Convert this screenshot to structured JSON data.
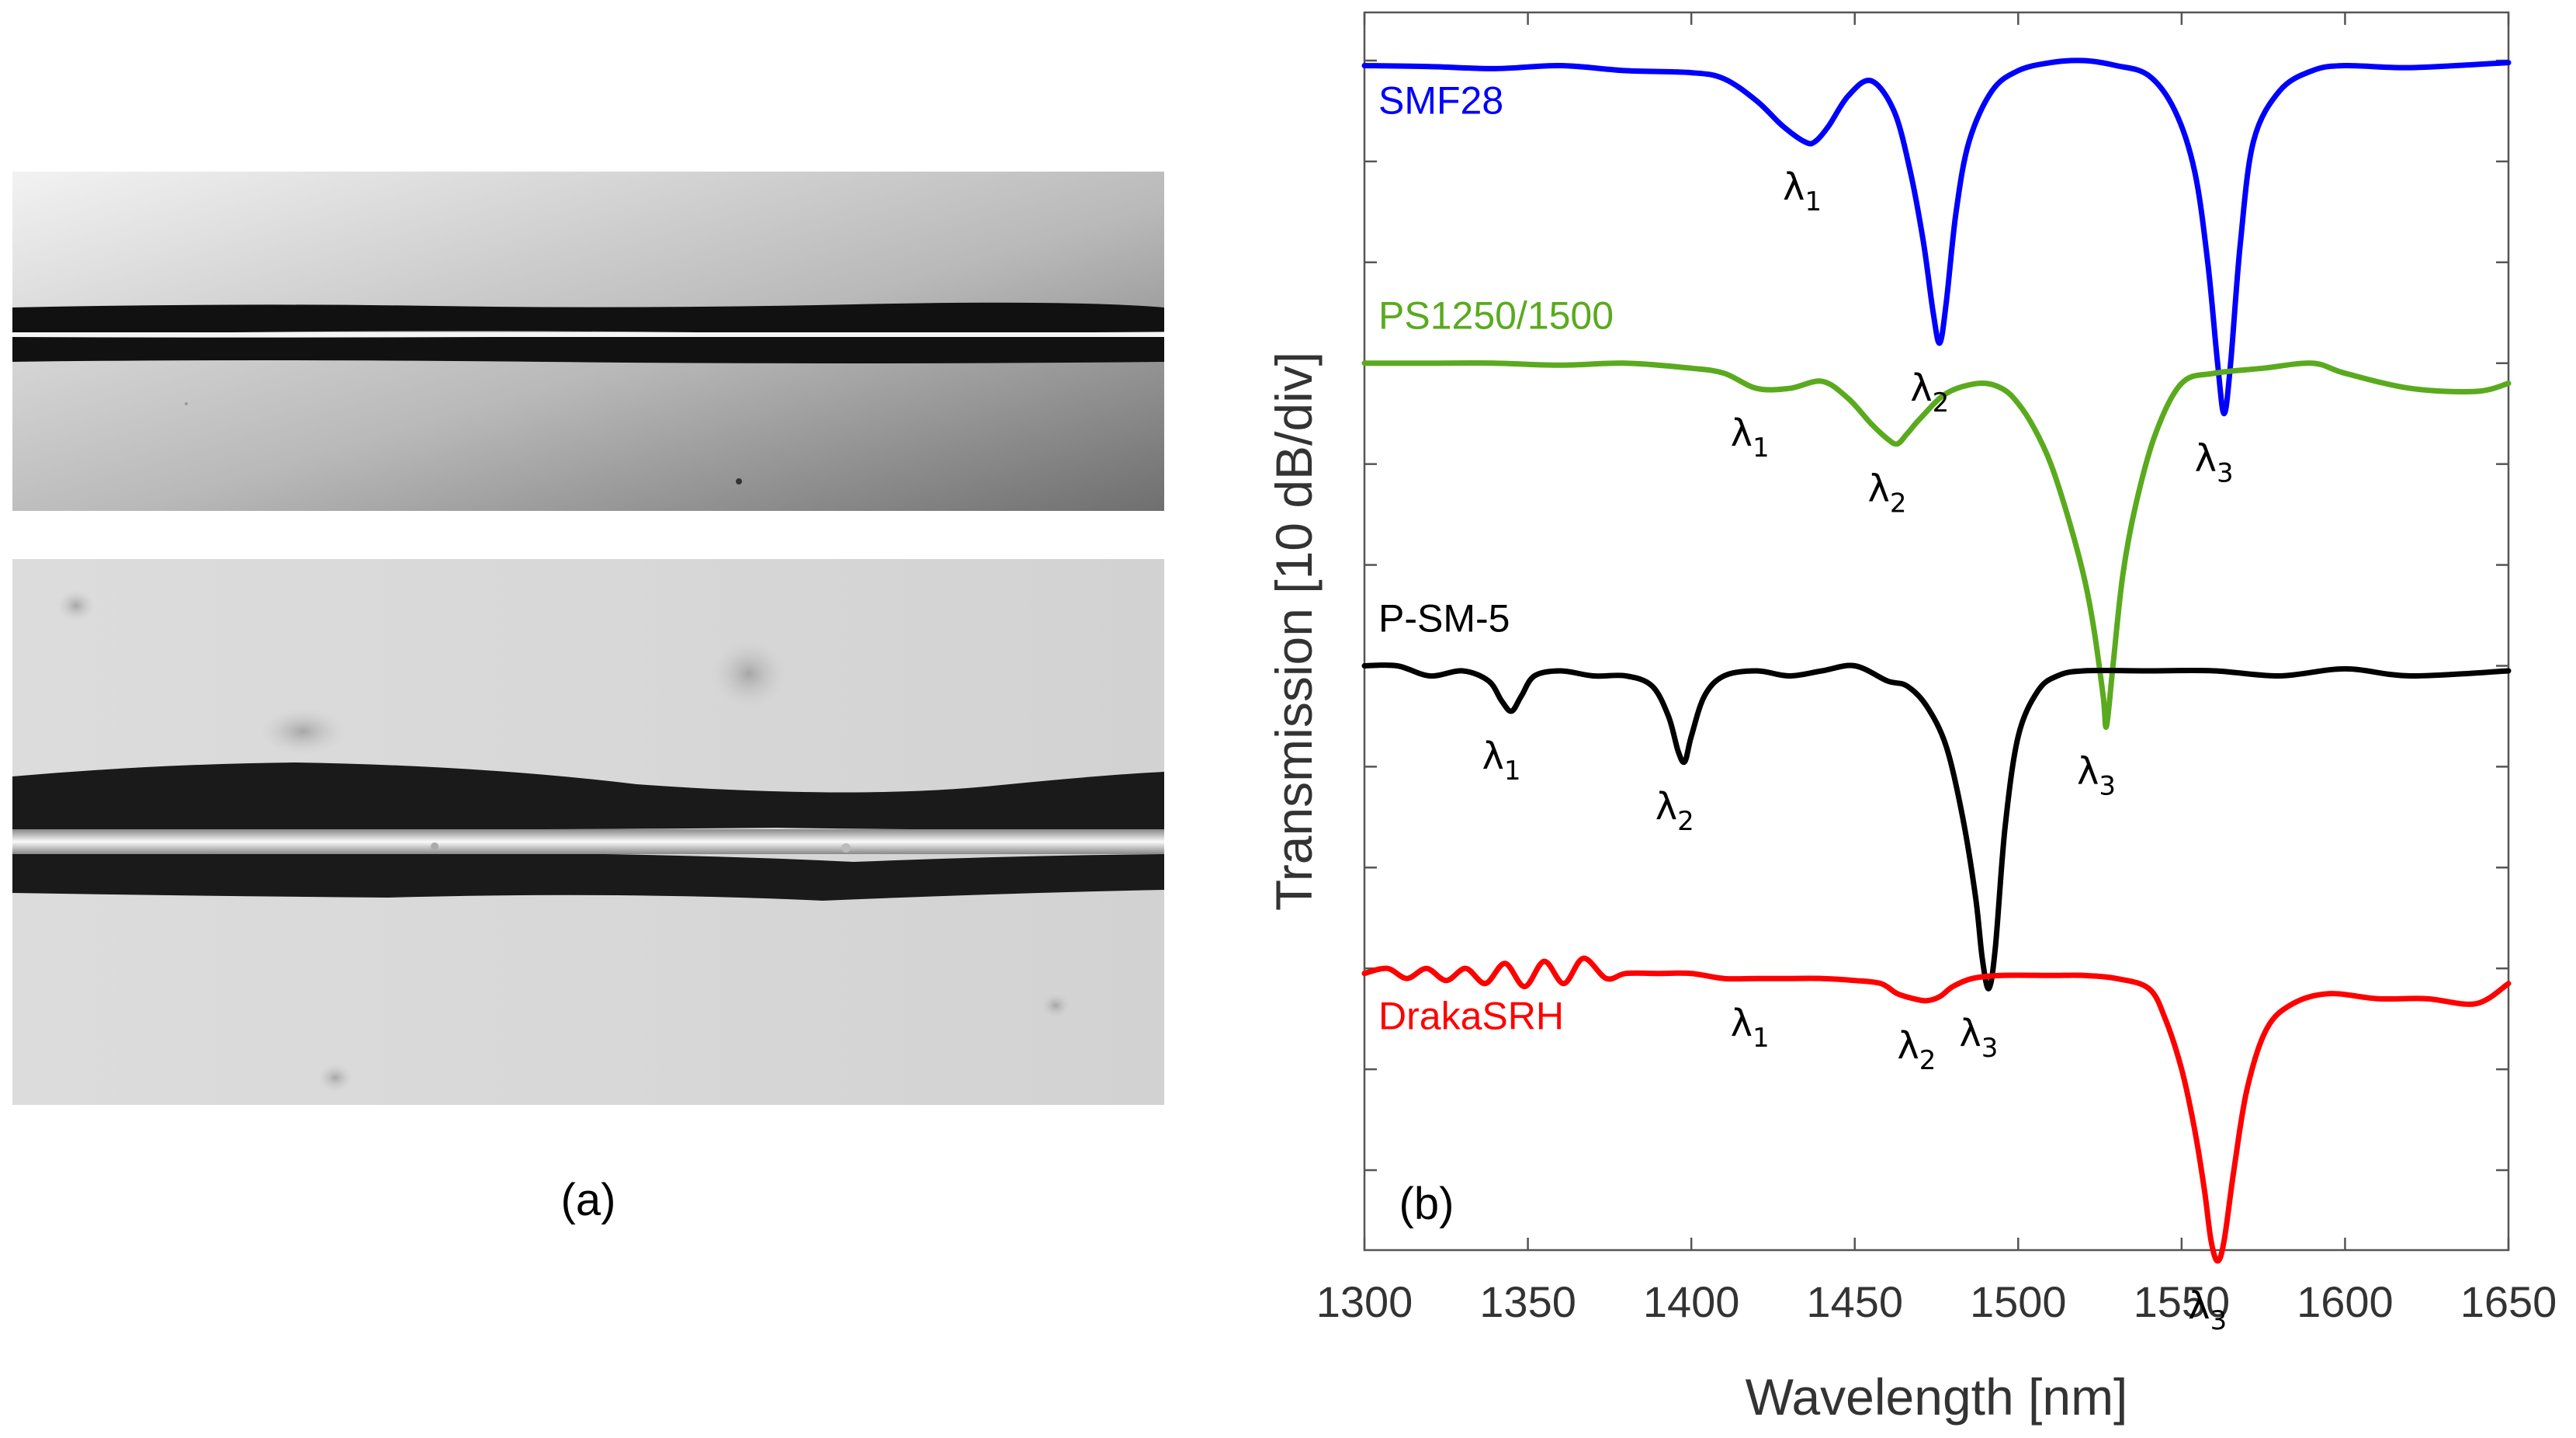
{
  "panel_a": {
    "label": "(a)",
    "images": [
      {
        "name": "micrograph-top",
        "description_name": "tapered fiber micrograph (low magnification)"
      },
      {
        "name": "micrograph-bottom",
        "description_name": "tapered fiber micrograph (high magnification)"
      }
    ]
  },
  "panel_b": {
    "label": "(b)"
  },
  "chart_data": {
    "type": "line",
    "title": "",
    "xlabel": "Wavelength [nm]",
    "ylabel": "Transmission [10 dB/div]",
    "xlim": [
      1300,
      1650
    ],
    "xticks": [
      1300,
      1350,
      1400,
      1450,
      1500,
      1550,
      1600,
      1650
    ],
    "ylim": [
      -115,
      0
    ],
    "ytick_step_db": 10,
    "grid": false,
    "legend": "none (series labels placed inline)",
    "series": [
      {
        "name": "SMF28",
        "color": "#0000ff",
        "x": [
          1300,
          1320,
          1340,
          1360,
          1380,
          1400,
          1410,
          1420,
          1428,
          1435,
          1438,
          1442,
          1448,
          1455,
          1462,
          1467,
          1471,
          1474,
          1476,
          1478,
          1481,
          1485,
          1492,
          1500,
          1510,
          1520,
          1530,
          1540,
          1548,
          1554,
          1558,
          1561,
          1563,
          1565,
          1568,
          1572,
          1580,
          1590,
          1600,
          1620,
          1650
        ],
        "y": [
          -0.5,
          -0.6,
          -0.8,
          -0.5,
          -1.0,
          -1.2,
          -1.8,
          -4.0,
          -6.5,
          -8.1,
          -8.0,
          -6.5,
          -3.5,
          -2.0,
          -5.0,
          -11.0,
          -18.0,
          -25.0,
          -28.0,
          -24.0,
          -15.0,
          -8.0,
          -3.0,
          -1.0,
          -0.2,
          0.0,
          -0.5,
          -1.5,
          -5.0,
          -11.0,
          -20.0,
          -30.0,
          -35.0,
          -30.0,
          -18.0,
          -8.0,
          -3.0,
          -1.0,
          -0.5,
          -0.7,
          -0.2
        ],
        "dips": [
          {
            "label": "λ",
            "sub": "1",
            "x": 1437,
            "y": -8.1
          },
          {
            "label": "λ",
            "sub": "2",
            "x": 1476,
            "y": -28.0
          },
          {
            "label": "λ",
            "sub": "3",
            "x": 1563,
            "y": -35.0
          }
        ]
      },
      {
        "name": "PS1250/1500",
        "color": "#5aaa1e",
        "x": [
          1300,
          1320,
          1340,
          1360,
          1380,
          1400,
          1410,
          1420,
          1430,
          1440,
          1448,
          1455,
          1460,
          1463,
          1466,
          1470,
          1478,
          1488,
          1495,
          1500,
          1505,
          1510,
          1515,
          1520,
          1523,
          1526,
          1527,
          1529,
          1532,
          1536,
          1542,
          1550,
          1560,
          1575,
          1590,
          1600,
          1620,
          1640,
          1650
        ],
        "y": [
          -30.0,
          -30.0,
          -30.0,
          -30.2,
          -30.0,
          -30.5,
          -31.0,
          -32.5,
          -32.5,
          -31.8,
          -33.5,
          -36.0,
          -37.5,
          -38.0,
          -37.0,
          -35.5,
          -33.0,
          -32.0,
          -32.5,
          -34.0,
          -36.5,
          -40.0,
          -45.0,
          -51.0,
          -56.0,
          -63.0,
          -66.0,
          -60.0,
          -51.0,
          -44.0,
          -37.0,
          -32.0,
          -31.0,
          -30.5,
          -30.0,
          -31.0,
          -32.5,
          -32.8,
          -32.0
        ],
        "dips": [
          {
            "label": "λ",
            "sub": "1",
            "x": 1421,
            "y": -32.5
          },
          {
            "label": "λ",
            "sub": "2",
            "x": 1463,
            "y": -38.0
          },
          {
            "label": "λ",
            "sub": "3",
            "x": 1527,
            "y": -66.0
          }
        ]
      },
      {
        "name": "P-SM-5",
        "color": "#000000",
        "x": [
          1300,
          1310,
          1320,
          1330,
          1338,
          1342,
          1345,
          1348,
          1352,
          1360,
          1370,
          1380,
          1388,
          1393,
          1396,
          1398,
          1400,
          1404,
          1410,
          1420,
          1430,
          1440,
          1450,
          1460,
          1466,
          1472,
          1478,
          1483,
          1487,
          1489,
          1491,
          1493,
          1496,
          1500,
          1506,
          1512,
          1520,
          1540,
          1560,
          1580,
          1600,
          1620,
          1650
        ],
        "y": [
          -60.0,
          -60.0,
          -61.0,
          -60.5,
          -61.5,
          -63.5,
          -64.5,
          -63.0,
          -61.0,
          -60.5,
          -61.0,
          -61.0,
          -62.0,
          -65.0,
          -68.5,
          -69.5,
          -67.0,
          -63.0,
          -61.0,
          -60.5,
          -61.0,
          -60.5,
          -60.0,
          -61.5,
          -62.0,
          -64.0,
          -68.0,
          -75.0,
          -83.0,
          -89.0,
          -92.0,
          -88.0,
          -76.0,
          -67.0,
          -62.5,
          -61.0,
          -60.5,
          -60.5,
          -60.5,
          -61.0,
          -60.3,
          -61.0,
          -60.5
        ],
        "dips": [
          {
            "label": "λ",
            "sub": "1",
            "x": 1345,
            "y": -64.5
          },
          {
            "label": "λ",
            "sub": "2",
            "x": 1398,
            "y": -69.5
          },
          {
            "label": "λ",
            "sub": "3",
            "x": 1491,
            "y": -92.0
          }
        ]
      },
      {
        "name": "DrakaSRH",
        "color": "#ff0000",
        "x": [
          1300,
          1307,
          1313,
          1319,
          1325,
          1331,
          1337,
          1343,
          1349,
          1355,
          1361,
          1367,
          1374,
          1380,
          1390,
          1400,
          1410,
          1420,
          1430,
          1440,
          1450,
          1458,
          1463,
          1468,
          1472,
          1476,
          1480,
          1486,
          1495,
          1510,
          1520,
          1530,
          1540,
          1545,
          1550,
          1554,
          1557,
          1559,
          1561,
          1563,
          1566,
          1570,
          1576,
          1584,
          1595,
          1610,
          1625,
          1640,
          1650
        ],
        "y": [
          -90.5,
          -90.0,
          -91.0,
          -90.0,
          -91.2,
          -90.0,
          -91.5,
          -89.5,
          -91.8,
          -89.3,
          -91.5,
          -89.0,
          -91.0,
          -90.5,
          -90.5,
          -90.5,
          -91.0,
          -91.0,
          -91.0,
          -91.0,
          -91.2,
          -91.5,
          -92.5,
          -93.0,
          -93.2,
          -92.8,
          -91.8,
          -91.0,
          -90.7,
          -90.7,
          -90.7,
          -91.0,
          -92.0,
          -95.0,
          -100.0,
          -106.0,
          -112.0,
          -117.0,
          -119.0,
          -117.0,
          -110.0,
          -102.0,
          -96.0,
          -93.5,
          -92.5,
          -93.0,
          -93.0,
          -93.5,
          -91.5
        ],
        "dips": [
          {
            "label": "λ",
            "sub": "1",
            "x": 1421,
            "y": -91.0
          },
          {
            "label": "λ",
            "sub": "2",
            "x": 1472,
            "y": -93.2
          },
          {
            "label": "λ",
            "sub": "3",
            "x": 1561,
            "y": -119.0
          }
        ]
      }
    ]
  }
}
